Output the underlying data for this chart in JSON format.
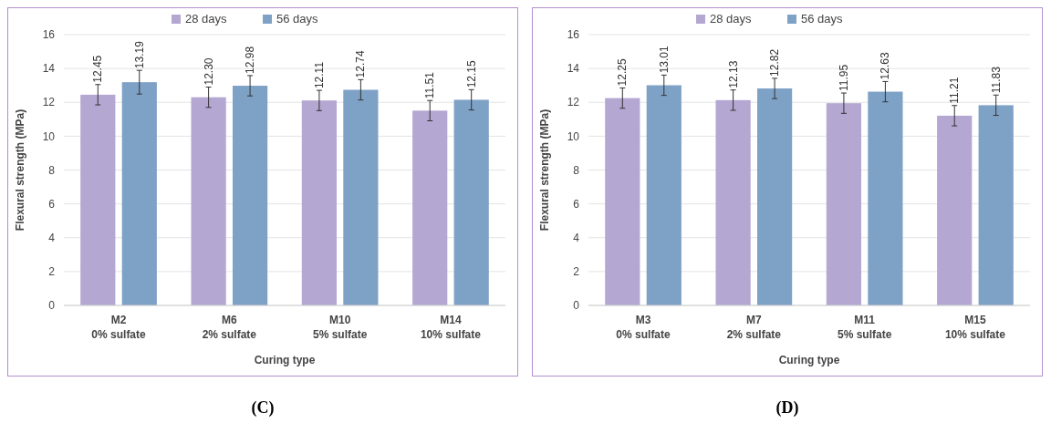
{
  "chart_data": [
    {
      "type": "bar",
      "categories": [
        "M2\n0% sulfate",
        "M6\n2% sulfate",
        "M10\n5% sulfate",
        "M14\n10% sulfate"
      ],
      "xlabel": "Curing type",
      "ylabel": "Flexural  strength (MPa)",
      "ylim": [
        0,
        16
      ],
      "yticks": [
        0,
        2,
        4,
        6,
        8,
        10,
        12,
        14,
        16
      ],
      "grid": "y",
      "legend": "top",
      "annotations": [
        "(C)"
      ],
      "series": [
        {
          "name": "28 days",
          "color": "#b4a7d1",
          "values": [
            12.45,
            12.3,
            12.11,
            11.51
          ],
          "errors": [
            0.6,
            0.6,
            0.6,
            0.6
          ],
          "value_labels": [
            "12.45",
            "12.30",
            "12.11",
            "11.51"
          ]
        },
        {
          "name": "56 days",
          "color": "#7ea1c6",
          "values": [
            13.19,
            12.98,
            12.74,
            12.15
          ],
          "errors": [
            0.7,
            0.6,
            0.6,
            0.6
          ],
          "value_labels": [
            "13.19",
            "12.98",
            "12.74",
            "12.15"
          ]
        }
      ]
    },
    {
      "type": "bar",
      "categories": [
        "M3\n0% sulfate",
        "M7\n2% sulfate",
        "M11\n5% sulfate",
        "M15\n10% sulfate"
      ],
      "xlabel": "Curing type",
      "ylabel": "Flexural  strength (MPa)",
      "ylim": [
        0,
        16
      ],
      "yticks": [
        0,
        2,
        4,
        6,
        8,
        10,
        12,
        14,
        16
      ],
      "grid": "y",
      "legend": "top",
      "annotations": [
        "(D)"
      ],
      "series": [
        {
          "name": "28 days",
          "color": "#b4a7d1",
          "values": [
            12.25,
            12.13,
            11.95,
            11.21
          ],
          "errors": [
            0.6,
            0.6,
            0.6,
            0.6
          ],
          "value_labels": [
            "12.25",
            "12.13",
            "11.95",
            "11.21"
          ]
        },
        {
          "name": "56 days",
          "color": "#7ea1c6",
          "values": [
            13.01,
            12.82,
            12.63,
            11.83
          ],
          "errors": [
            0.6,
            0.6,
            0.6,
            0.6
          ],
          "value_labels": [
            "13.01",
            "12.82",
            "12.63",
            "11.83"
          ]
        }
      ]
    }
  ]
}
